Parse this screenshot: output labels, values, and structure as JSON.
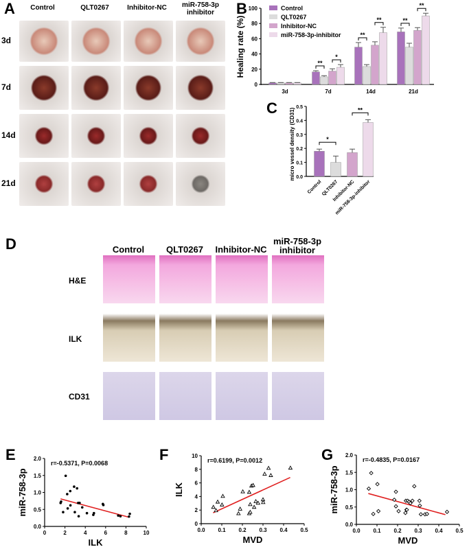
{
  "panels": {
    "a": "A",
    "b": "B",
    "c": "C",
    "d": "D",
    "e": "E",
    "f": "F",
    "g": "G"
  },
  "panel_a": {
    "columns": [
      "Control",
      "QLT0267",
      "Inhibitor-NC",
      "miR-758-3p inhibitor"
    ],
    "rows": [
      "3d",
      "7d",
      "14d",
      "21d"
    ]
  },
  "panel_d": {
    "columns": [
      "Control",
      "QLT0267",
      "Inhibitor-NC",
      "miR-758-3p inhibitor"
    ],
    "rows": [
      "H&E",
      "ILK",
      "CD31"
    ]
  },
  "chart_data": [
    {
      "id": "B",
      "type": "bar",
      "ylabel": "Healing rate (%)",
      "ylim": [
        0,
        100
      ],
      "yticks": [
        0,
        20,
        40,
        60,
        80,
        100
      ],
      "categories": [
        "3d",
        "7d",
        "14d",
        "21d"
      ],
      "legend": "top-left",
      "series": [
        {
          "name": "Control",
          "color": "#a872bb",
          "values": [
            2,
            16.5,
            49,
            69
          ],
          "errors": [
            0.5,
            1.5,
            6,
            5
          ]
        },
        {
          "name": "QLT0267",
          "color": "#dcdcdc",
          "values": [
            2,
            10,
            23.5,
            49
          ],
          "errors": [
            0.5,
            1.5,
            2.5,
            5
          ]
        },
        {
          "name": "Inhibitor-NC",
          "color": "#d3a5cc",
          "values": [
            2,
            17.5,
            51.5,
            71
          ],
          "errors": [
            0.5,
            3,
            4.5,
            3.5
          ]
        },
        {
          "name": "miR-758-3p-inhibitor",
          "color": "#eddaea",
          "values": [
            2,
            22.5,
            68,
            90
          ],
          "errors": [
            0.5,
            3.5,
            7,
            3.5
          ]
        }
      ],
      "significance": [
        {
          "category": "7d",
          "pair": [
            0,
            1
          ],
          "label": "**"
        },
        {
          "category": "7d",
          "pair": [
            2,
            3
          ],
          "label": "*"
        },
        {
          "category": "14d",
          "pair": [
            0,
            1
          ],
          "label": "**"
        },
        {
          "category": "14d",
          "pair": [
            2,
            3
          ],
          "label": "**"
        },
        {
          "category": "21d",
          "pair": [
            0,
            1
          ],
          "label": "**"
        },
        {
          "category": "21d",
          "pair": [
            2,
            3
          ],
          "label": "**"
        }
      ]
    },
    {
      "id": "C",
      "type": "bar",
      "ylabel": "micro vessel density (CD31)",
      "ylim": [
        0,
        0.5
      ],
      "yticks": [
        "0.0",
        "0.1",
        "0.2",
        "0.3",
        "0.4",
        "0.5"
      ],
      "categories": [
        "Control",
        "QLT0267",
        "Inhibitor-NC",
        "miR-758-3p-inhibitor"
      ],
      "colors": [
        "#a872bb",
        "#dcdcdc",
        "#d3a5cc",
        "#eddaea"
      ],
      "values": [
        0.18,
        0.1,
        0.17,
        0.385
      ],
      "errors": [
        0.015,
        0.045,
        0.025,
        0.02
      ],
      "significance": [
        {
          "pair": [
            0,
            1
          ],
          "label": "*"
        },
        {
          "pair": [
            2,
            3
          ],
          "label": "**"
        }
      ]
    },
    {
      "id": "E",
      "type": "scatter",
      "xlabel": "ILK",
      "ylabel": "miR-758-3p",
      "annotation": "r=-0.5371, P=0.0068",
      "xlim": [
        0,
        10
      ],
      "ylim": [
        0,
        2
      ],
      "xticks": [
        "0",
        "2",
        "4",
        "6",
        "8",
        "10"
      ],
      "yticks": [
        "0.0",
        "0.5",
        "1.0",
        "1.5",
        "2.0"
      ],
      "marker": "circle",
      "points": [
        [
          1.57,
          0.69
        ],
        [
          1.62,
          0.73
        ],
        [
          2.07,
          1.49
        ],
        [
          1.82,
          0.42
        ],
        [
          2.22,
          0.95
        ],
        [
          2.27,
          0.53
        ],
        [
          2.52,
          1.04
        ],
        [
          2.54,
          0.62
        ],
        [
          2.9,
          1.17
        ],
        [
          2.97,
          0.42
        ],
        [
          3.19,
          1.12
        ],
        [
          3.3,
          0.69
        ],
        [
          3.44,
          0.69
        ],
        [
          3.35,
          0.3
        ],
        [
          3.7,
          0.56
        ],
        [
          4.16,
          0.39
        ],
        [
          4.79,
          0.34
        ],
        [
          4.85,
          0.39
        ],
        [
          5.73,
          0.66
        ],
        [
          5.78,
          0.63
        ],
        [
          7.24,
          0.32
        ],
        [
          7.46,
          0.3
        ],
        [
          8.3,
          0.29
        ],
        [
          8.38,
          0.37
        ]
      ],
      "fit_line": [
        [
          1.57,
          0.81
        ],
        [
          8.3,
          0.27
        ]
      ],
      "line_color": "#e02020"
    },
    {
      "id": "F",
      "type": "scatter",
      "xlabel": "MVD",
      "ylabel": "ILK",
      "annotation": "r=0.6199, P=0.0012",
      "xlim": [
        0,
        0.5
      ],
      "ylim": [
        0,
        10
      ],
      "xticks": [
        "0.0",
        "0.1",
        "0.2",
        "0.3",
        "0.4",
        "0.5"
      ],
      "yticks": [
        "0",
        "2",
        "4",
        "6",
        "8",
        "10"
      ],
      "marker": "triangle",
      "points": [
        [
          0.059,
          2.45
        ],
        [
          0.072,
          1.95
        ],
        [
          0.08,
          3.22
        ],
        [
          0.101,
          2.79
        ],
        [
          0.105,
          4.06
        ],
        [
          0.181,
          1.51
        ],
        [
          0.189,
          2.18
        ],
        [
          0.202,
          4.73
        ],
        [
          0.233,
          4.66
        ],
        [
          0.233,
          1.51
        ],
        [
          0.238,
          1.71
        ],
        [
          0.238,
          2.85
        ],
        [
          0.244,
          5.57
        ],
        [
          0.252,
          5.67
        ],
        [
          0.257,
          2.45
        ],
        [
          0.265,
          3.29
        ],
        [
          0.276,
          3.05
        ],
        [
          0.3,
          3.56
        ],
        [
          0.301,
          3.15
        ],
        [
          0.308,
          7.32
        ],
        [
          0.327,
          8.19
        ],
        [
          0.338,
          7.12
        ],
        [
          0.433,
          8.22
        ]
      ],
      "fit_line": [
        [
          0.058,
          1.6
        ],
        [
          0.432,
          6.8
        ]
      ],
      "line_color": "#e02020"
    },
    {
      "id": "G",
      "type": "scatter",
      "xlabel": "MVD",
      "ylabel": "miR-758-3p",
      "annotation": "r=-0.4835, P=0.0167",
      "xlim": [
        0,
        0.5
      ],
      "ylim": [
        0,
        2
      ],
      "xticks": [
        "0.0",
        "0.1",
        "0.2",
        "0.3",
        "0.4",
        "0.5"
      ],
      "yticks": [
        "0.0",
        "0.5",
        "1.0",
        "1.5",
        "2.0"
      ],
      "marker": "diamond",
      "points": [
        [
          0.06,
          1.03
        ],
        [
          0.072,
          1.48
        ],
        [
          0.082,
          0.3
        ],
        [
          0.102,
          1.16
        ],
        [
          0.107,
          0.38
        ],
        [
          0.184,
          0.71
        ],
        [
          0.192,
          0.94
        ],
        [
          0.192,
          0.52
        ],
        [
          0.205,
          0.38
        ],
        [
          0.238,
          0.33
        ],
        [
          0.24,
          0.68
        ],
        [
          0.243,
          0.42
        ],
        [
          0.245,
          0.42
        ],
        [
          0.249,
          0.68
        ],
        [
          0.256,
          0.65
        ],
        [
          0.262,
          0.61
        ],
        [
          0.272,
          0.68
        ],
        [
          0.281,
          1.1
        ],
        [
          0.306,
          0.68
        ],
        [
          0.308,
          0.54
        ],
        [
          0.313,
          0.29
        ],
        [
          0.333,
          0.29
        ],
        [
          0.343,
          0.3
        ],
        [
          0.44,
          0.36
        ]
      ],
      "fit_line": [
        [
          0.058,
          0.89
        ],
        [
          0.432,
          0.28
        ]
      ],
      "line_color": "#e02020"
    }
  ]
}
